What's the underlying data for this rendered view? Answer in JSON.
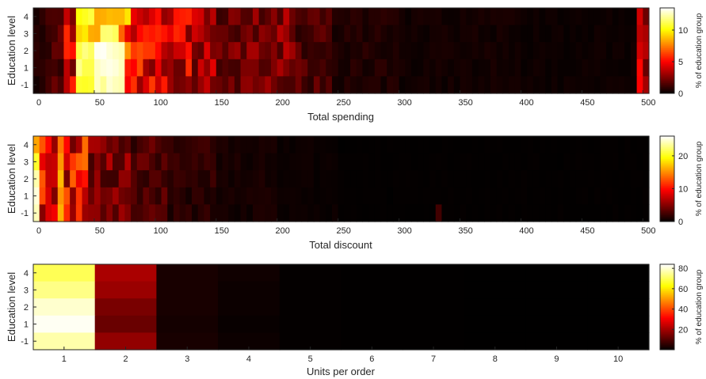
{
  "colormap": "hot",
  "axis_color": "#262626",
  "chart_data": [
    {
      "type": "heatmap",
      "xlabel": "Total spending",
      "ylabel": "Education level",
      "colorbar_label": "% of education group",
      "rows": [
        "4",
        "3",
        "2",
        "1",
        "-1"
      ],
      "x_bin_width": 5,
      "xlim": [
        0,
        505
      ],
      "x_ticks": [
        0,
        50,
        100,
        150,
        200,
        250,
        300,
        350,
        400,
        450,
        500
      ],
      "clim": [
        0,
        13.5
      ],
      "colorbar_ticks": [
        0,
        5,
        10
      ],
      "hotspots": [
        {
          "row": "4",
          "x": [
            35,
            50
          ],
          "value": 11
        },
        {
          "row": "4",
          "x": [
            50,
            75
          ],
          "value": 9
        },
        {
          "row": "3",
          "x": [
            35,
            45
          ],
          "value": 10
        },
        {
          "row": "3",
          "x": [
            45,
            55
          ],
          "value": 9
        },
        {
          "row": "3",
          "x": [
            55,
            70
          ],
          "value": 12
        },
        {
          "row": "2",
          "x": [
            35,
            50
          ],
          "value": 12
        },
        {
          "row": "2",
          "x": [
            50,
            75
          ],
          "value": 13.5
        },
        {
          "row": "1",
          "x": [
            35,
            50
          ],
          "value": 12
        },
        {
          "row": "1",
          "x": [
            50,
            75
          ],
          "value": 13.5
        },
        {
          "row": "-1",
          "x": [
            35,
            50
          ],
          "value": 11
        },
        {
          "row": "-1",
          "x": [
            50,
            75
          ],
          "value": 13
        }
      ]
    },
    {
      "type": "heatmap",
      "xlabel": "Total discount",
      "ylabel": "Education level",
      "colorbar_label": "% of education group",
      "rows": [
        "4",
        "3",
        "2",
        "1",
        "-1"
      ],
      "x_bin_width": 5,
      "xlim": [
        0,
        505
      ],
      "x_ticks": [
        0,
        50,
        100,
        150,
        200,
        250,
        300,
        350,
        400,
        450,
        500
      ],
      "clim": [
        0,
        26
      ],
      "colorbar_ticks": [
        0,
        10,
        20
      ],
      "hotspots": [
        {
          "row": "4",
          "x": [
            0,
            5
          ],
          "value": 17
        },
        {
          "row": "3",
          "x": [
            0,
            5
          ],
          "value": 21
        },
        {
          "row": "2",
          "x": [
            0,
            5
          ],
          "value": 24
        },
        {
          "row": "1",
          "x": [
            0,
            5
          ],
          "value": 26
        },
        {
          "row": "-1",
          "x": [
            0,
            5
          ],
          "value": 26
        },
        {
          "row": "4",
          "x": [
            20,
            25
          ],
          "value": 15
        },
        {
          "row": "3",
          "x": [
            20,
            25
          ],
          "value": 16
        },
        {
          "row": "2",
          "x": [
            20,
            25
          ],
          "value": 18
        },
        {
          "row": "1",
          "x": [
            20,
            25
          ],
          "value": 16
        },
        {
          "row": "-1",
          "x": [
            20,
            25
          ],
          "value": 17
        }
      ]
    },
    {
      "type": "heatmap",
      "xlabel": "Units per order",
      "ylabel": "Education level",
      "colorbar_label": "% of education group",
      "rows": [
        "4",
        "3",
        "2",
        "1",
        "-1"
      ],
      "x_categories": [
        "1",
        "2",
        "3",
        "4",
        "5",
        "6",
        "7",
        "8",
        "9",
        "10"
      ],
      "clim": [
        0,
        84
      ],
      "colorbar_ticks": [
        20,
        40,
        60,
        80
      ],
      "values": [
        [
          70,
          21,
          3,
          2,
          0.5,
          0.3,
          0.2,
          0.1,
          0.1,
          0.1
        ],
        [
          74,
          19,
          3,
          1.5,
          0.5,
          0.3,
          0.2,
          0.1,
          0.1,
          0.1
        ],
        [
          80,
          15,
          3,
          1.5,
          0.5,
          0.3,
          0.2,
          0.1,
          0.1,
          0.1
        ],
        [
          83,
          13,
          2.5,
          1,
          0.5,
          0.3,
          0.2,
          0.1,
          0.1,
          0.1
        ],
        [
          77,
          18,
          3,
          1.5,
          0.5,
          0.3,
          0.2,
          0.1,
          0.1,
          0.1
        ]
      ]
    }
  ]
}
